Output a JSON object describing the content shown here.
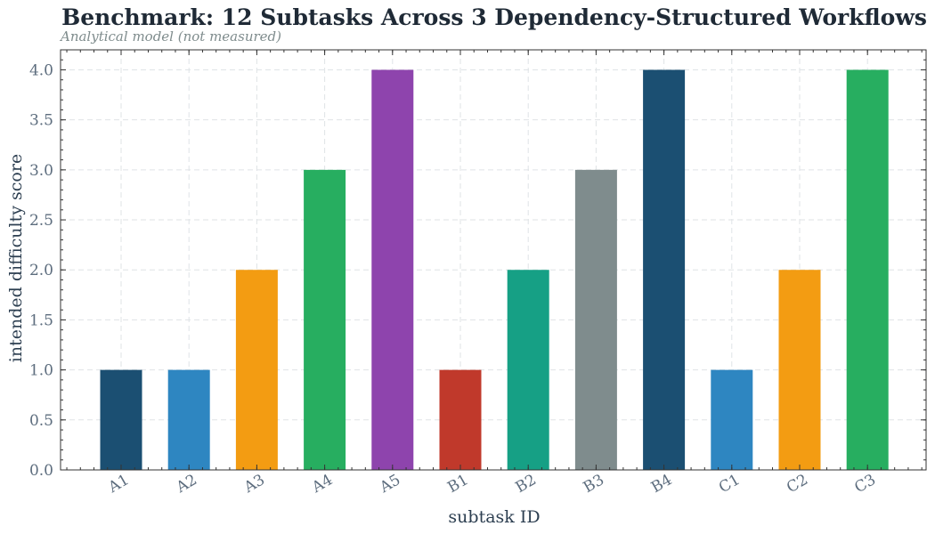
{
  "chart_data": {
    "type": "bar",
    "title": "Benchmark: 12 Subtasks Across 3 Dependency-Structured Workflows",
    "subtitle": "Analytical model (not measured)",
    "xlabel": "subtask ID",
    "ylabel": "intended difficulty score",
    "ylim": [
      0,
      4.2
    ],
    "yticks": [
      "0.0",
      "0.5",
      "1.0",
      "1.5",
      "2.0",
      "2.5",
      "3.0",
      "3.5",
      "4.0"
    ],
    "grid": true,
    "categories": [
      "A1",
      "A2",
      "A3",
      "A4",
      "A5",
      "B1",
      "B2",
      "B3",
      "B4",
      "C1",
      "C2",
      "C3"
    ],
    "values": [
      1,
      1,
      2,
      3,
      4,
      1,
      2,
      3,
      4,
      1,
      2,
      4
    ],
    "colors": [
      "#1b4f72",
      "#2e86c1",
      "#f39c12",
      "#27ae60",
      "#8e44ad",
      "#c0392b",
      "#16a085",
      "#7f8c8d",
      "#1b4f72",
      "#2e86c1",
      "#f39c12",
      "#27ae60"
    ]
  }
}
